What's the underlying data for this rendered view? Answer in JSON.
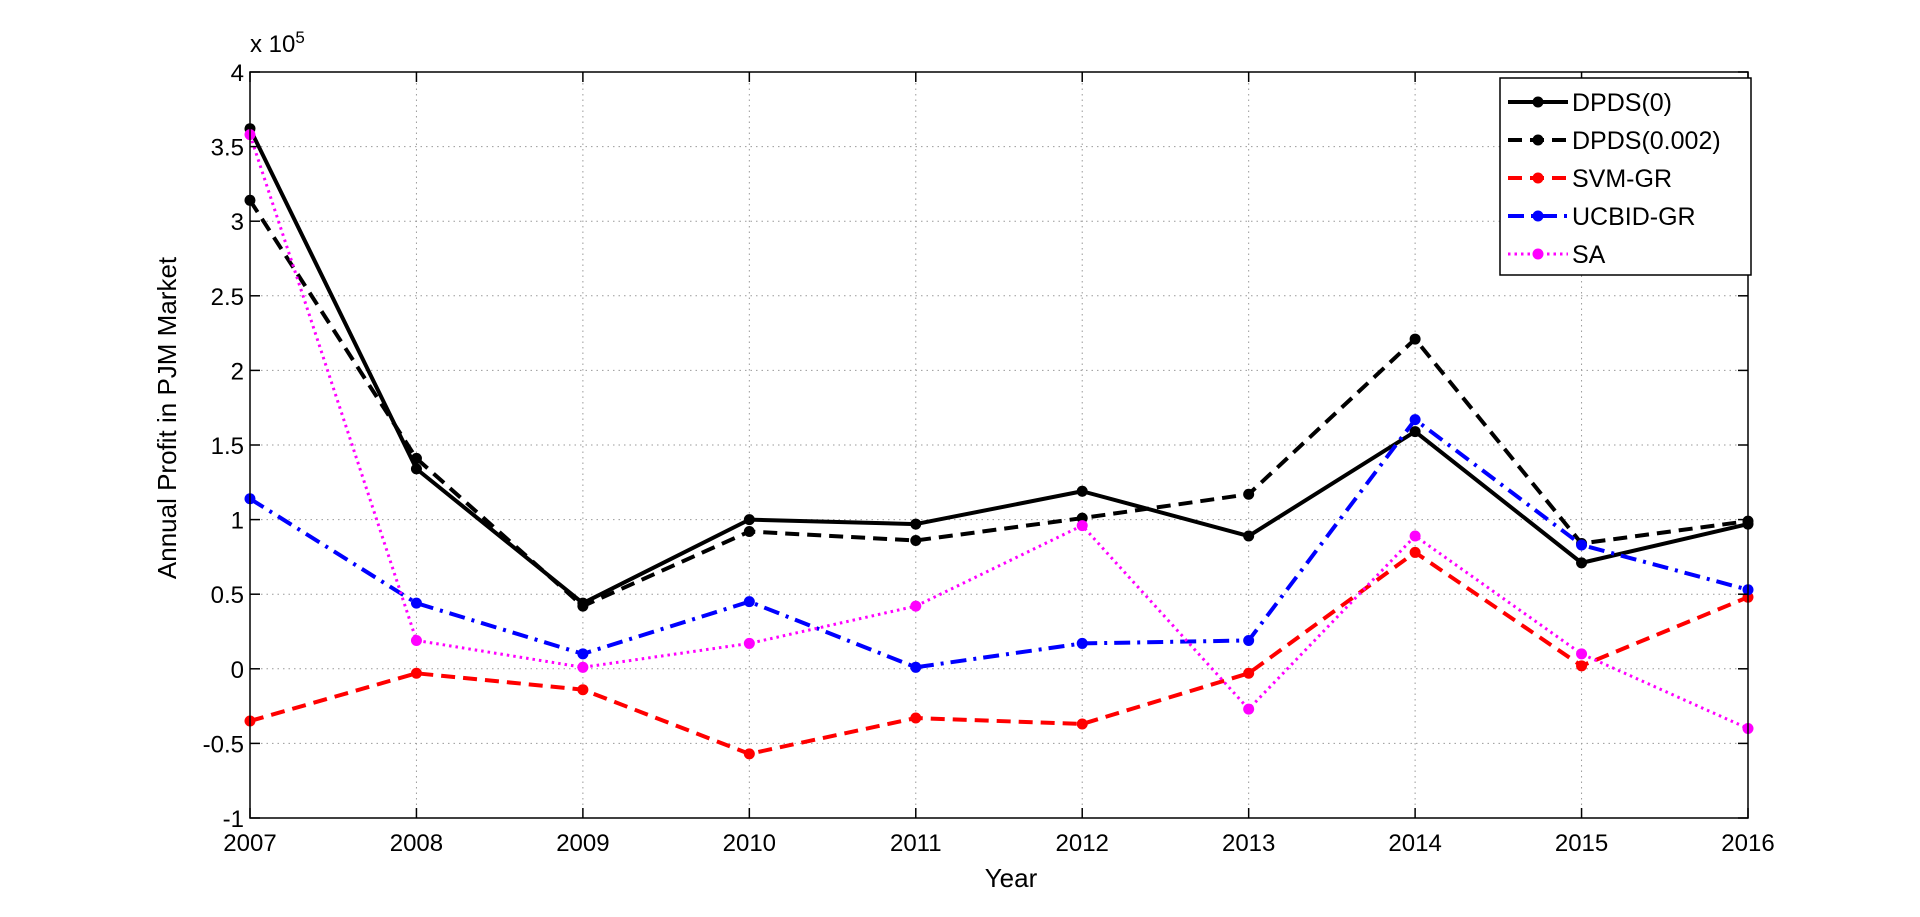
{
  "chart_data": {
    "type": "line",
    "xlabel": "Year",
    "ylabel": "Annual Profit in PJM Market",
    "y_exponent_label": "x 10",
    "y_exponent_power": "5",
    "x": [
      2007,
      2008,
      2009,
      2010,
      2011,
      2012,
      2013,
      2014,
      2015,
      2016
    ],
    "x_tick_labels": [
      "2007",
      "2008",
      "2009",
      "2010",
      "2011",
      "2012",
      "2013",
      "2014",
      "2015",
      "2016"
    ],
    "xlim": [
      2007,
      2016
    ],
    "ylim": [
      -1,
      4
    ],
    "y_ticks": [
      -1,
      -0.5,
      0,
      0.5,
      1,
      1.5,
      2,
      2.5,
      3,
      3.5,
      4
    ],
    "y_tick_labels": [
      "-1",
      "-0.5",
      "0",
      "0.5",
      "1",
      "1.5",
      "2",
      "2.5",
      "3",
      "3.5",
      "4"
    ],
    "grid": true,
    "legend_position": "top-right",
    "series": [
      {
        "name": "DPDS(0)",
        "color": "#000000",
        "style": "solid",
        "values": [
          3.62,
          1.34,
          0.44,
          1.0,
          0.97,
          1.19,
          0.89,
          1.59,
          0.71,
          0.97
        ]
      },
      {
        "name": "DPDS(0.002)",
        "color": "#000000",
        "style": "dashed",
        "values": [
          3.14,
          1.41,
          0.42,
          0.92,
          0.86,
          1.01,
          1.17,
          2.21,
          0.84,
          0.99
        ]
      },
      {
        "name": "SVM-GR",
        "color": "#ff0000",
        "style": "dashed",
        "values": [
          -0.35,
          -0.03,
          -0.14,
          -0.57,
          -0.33,
          -0.37,
          -0.03,
          0.78,
          0.02,
          0.48
        ]
      },
      {
        "name": "UCBID-GR",
        "color": "#0000ff",
        "style": "dashdot",
        "values": [
          1.14,
          0.44,
          0.1,
          0.45,
          0.01,
          0.17,
          0.19,
          1.67,
          0.83,
          0.53
        ]
      },
      {
        "name": "SA",
        "color": "#ff00ff",
        "style": "dotted",
        "values": [
          3.58,
          0.19,
          0.01,
          0.17,
          0.42,
          0.96,
          -0.27,
          0.89,
          0.1,
          -0.4
        ]
      }
    ]
  }
}
